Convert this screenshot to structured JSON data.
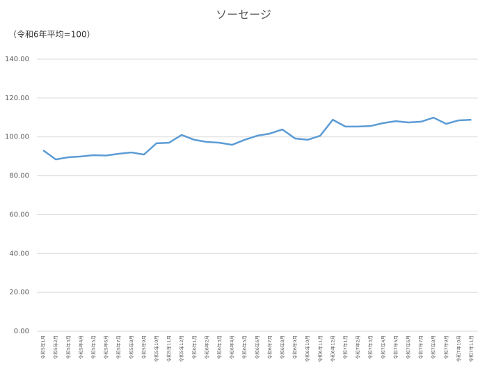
{
  "chart_data": {
    "type": "line",
    "title": "ソーセージ",
    "subtitle": "（令和6年平均=100）",
    "categories": [
      "令和5年1月",
      "令和5年2月",
      "令和5年3月",
      "令和5年4月",
      "令和5年5月",
      "令和5年6月",
      "令和5年7月",
      "令和5年8月",
      "令和5年9月",
      "令和5年10月",
      "令和5年11月",
      "令和5年12月",
      "令和6年1月",
      "令和6年2月",
      "令和6年3月",
      "令和6年4月",
      "令和6年5月",
      "令和6年6月",
      "令和6年7月",
      "令和6年8月",
      "令和6年9月",
      "令和6年10月",
      "令和6年11月",
      "令和6年12月",
      "令和7年1月",
      "令和7年2月",
      "令和7年3月",
      "令和7年4月",
      "令和7年5月",
      "令和7年6月",
      "令和7年7月",
      "令和7年8月",
      "令和7年9月",
      "令和7年10月",
      "令和7年11月"
    ],
    "values": [
      93.1,
      88.4,
      89.5,
      89.9,
      90.6,
      90.4,
      91.3,
      92.0,
      90.9,
      96.7,
      97.0,
      101.0,
      98.5,
      97.4,
      97.0,
      95.9,
      98.5,
      100.6,
      101.7,
      103.8,
      99.2,
      98.5,
      100.6,
      108.8,
      105.3,
      105.3,
      105.6,
      107.1,
      108.1,
      107.4,
      107.8,
      109.9,
      106.7,
      108.5,
      108.8
    ],
    "color": "#5b9bd5",
    "ylim": [
      0,
      140
    ],
    "yticks": [
      {
        "value": 0,
        "label": "0.00"
      },
      {
        "value": 20,
        "label": "20.00"
      },
      {
        "value": 40,
        "label": "40.00"
      },
      {
        "value": 60,
        "label": "60.00"
      },
      {
        "value": 80,
        "label": "80.00"
      },
      {
        "value": 100,
        "label": "100.00"
      },
      {
        "value": 120,
        "label": "120.00"
      },
      {
        "value": 140,
        "label": "140.00"
      }
    ],
    "grid": true
  }
}
